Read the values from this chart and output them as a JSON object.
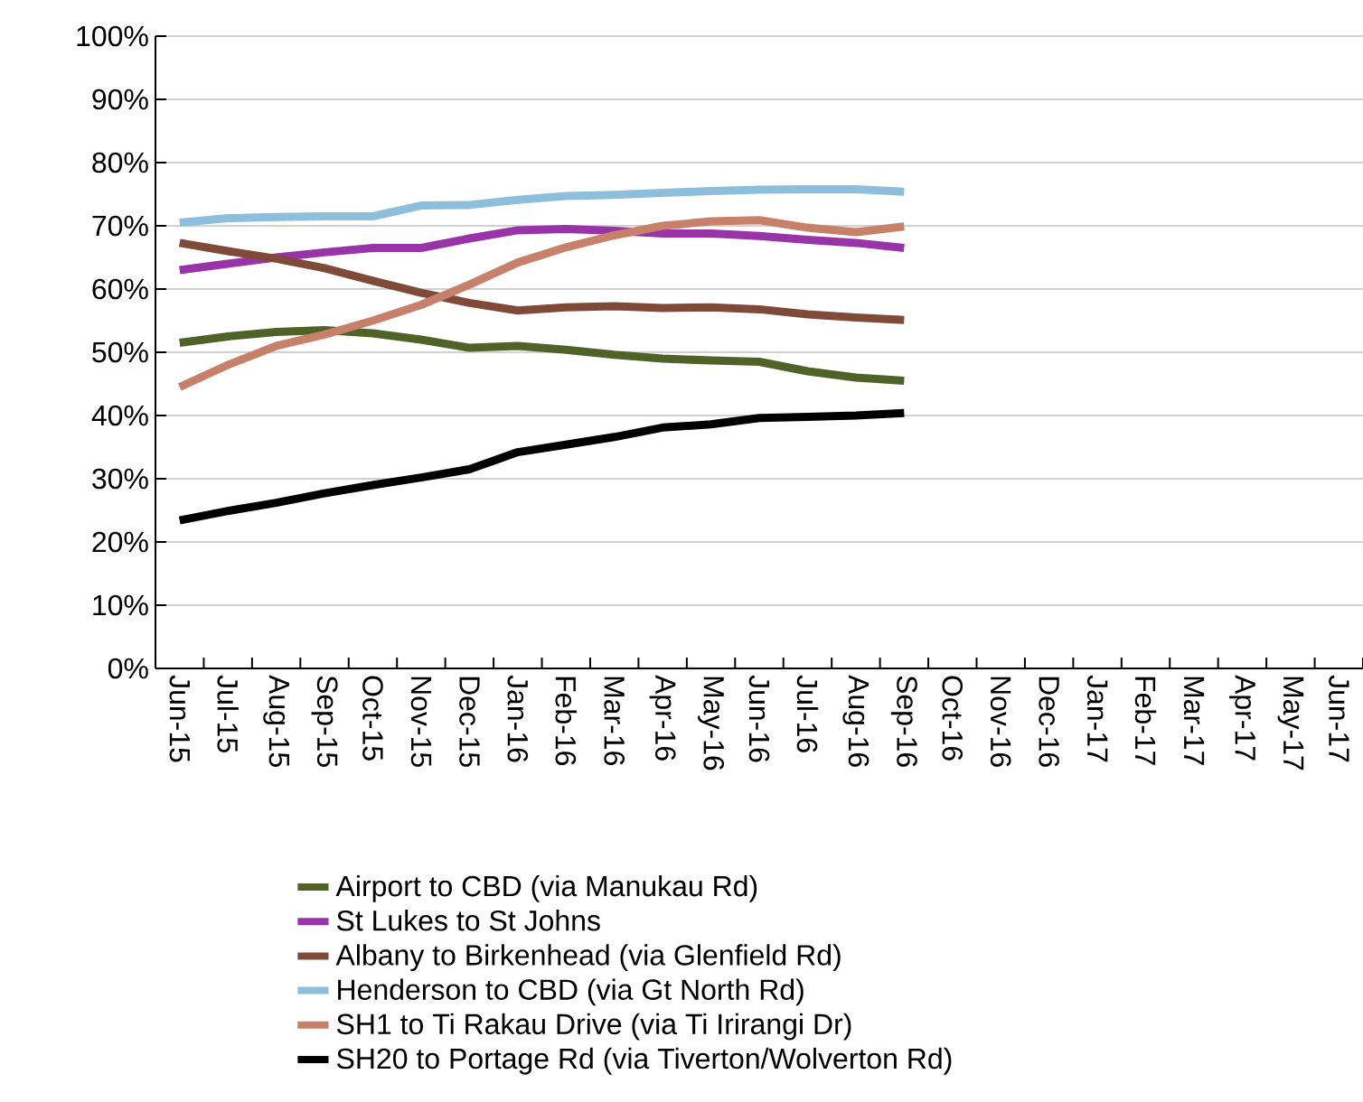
{
  "chart_data": {
    "type": "line",
    "categories": [
      "Jun-15",
      "Jul-15",
      "Aug-15",
      "Sep-15",
      "Oct-15",
      "Nov-15",
      "Dec-15",
      "Jan-16",
      "Feb-16",
      "Mar-16",
      "Apr-16",
      "May-16",
      "Jun-16",
      "Jul-16",
      "Aug-16",
      "Sep-16",
      "Oct-16",
      "Nov-16",
      "Dec-16",
      "Jan-17",
      "Feb-17",
      "Mar-17",
      "Apr-17",
      "May-17",
      "Jun-17"
    ],
    "series": [
      {
        "name": "Airport to CBD (via Manukau Rd)",
        "color": "#4f6228",
        "values": [
          51.5,
          52.5,
          53.2,
          53.5,
          53,
          52,
          50.7,
          51,
          50.4,
          49.6,
          49,
          48.7,
          48.5,
          47,
          46,
          45.5,
          null,
          null,
          null,
          null,
          null,
          null,
          null,
          null,
          null
        ]
      },
      {
        "name": "St Lukes to St Johns",
        "color": "#9933a8",
        "values": [
          63,
          64,
          65,
          65.8,
          66.5,
          66.5,
          68,
          69.3,
          69.5,
          69.2,
          68.8,
          68.8,
          68.4,
          67.8,
          67.3,
          66.5,
          null,
          null,
          null,
          null,
          null,
          null,
          null,
          null,
          null
        ]
      },
      {
        "name": "Albany to Birkenhead (via Glenfield Rd)",
        "color": "#7f4a38",
        "values": [
          67.3,
          66,
          64.8,
          63.3,
          61.3,
          59.4,
          57.8,
          56.6,
          57.1,
          57.3,
          57,
          57.1,
          56.8,
          56,
          55.5,
          55.1,
          null,
          null,
          null,
          null,
          null,
          null,
          null,
          null,
          null
        ]
      },
      {
        "name": "Henderson to CBD (via Gt North Rd)",
        "color": "#8dbfdc",
        "values": [
          70.5,
          71.2,
          71.4,
          71.5,
          71.5,
          73.2,
          73.3,
          74.1,
          74.7,
          74.9,
          75.2,
          75.5,
          75.7,
          75.8,
          75.8,
          75.4,
          null,
          null,
          null,
          null,
          null,
          null,
          null,
          null,
          null
        ]
      },
      {
        "name": "SH1 to Ti Rakau Drive (via Ti Irirangi Dr)",
        "color": "#c7806a",
        "values": [
          44.5,
          48,
          51,
          52.8,
          55,
          57.5,
          60.7,
          64.2,
          66.6,
          68.5,
          70,
          70.7,
          70.9,
          69.7,
          69,
          69.9,
          null,
          null,
          null,
          null,
          null,
          null,
          null,
          null,
          null
        ]
      },
      {
        "name": "SH20 to Portage Rd (via Tiverton/Wolverton Rd)",
        "color": "#000000",
        "values": [
          23.4,
          24.9,
          26.2,
          27.7,
          29,
          30.2,
          31.5,
          34.2,
          35.4,
          36.6,
          38.1,
          38.6,
          39.6,
          39.8,
          40,
          40.4,
          null,
          null,
          null,
          null,
          null,
          null,
          null,
          null,
          null
        ]
      }
    ],
    "ylim": [
      0,
      100
    ],
    "yticks": [
      {
        "value": 0,
        "label": "0%"
      },
      {
        "value": 10,
        "label": "10%"
      },
      {
        "value": 20,
        "label": "20%"
      },
      {
        "value": 30,
        "label": "30%"
      },
      {
        "value": 40,
        "label": "40%"
      },
      {
        "value": 50,
        "label": "50%"
      },
      {
        "value": 60,
        "label": "60%"
      },
      {
        "value": 70,
        "label": "70%"
      },
      {
        "value": 80,
        "label": "80%"
      },
      {
        "value": 90,
        "label": "90%"
      },
      {
        "value": 100,
        "label": "100%"
      }
    ],
    "grid": "y",
    "legend": "bottom",
    "marker": "none",
    "line_style": "solid"
  }
}
